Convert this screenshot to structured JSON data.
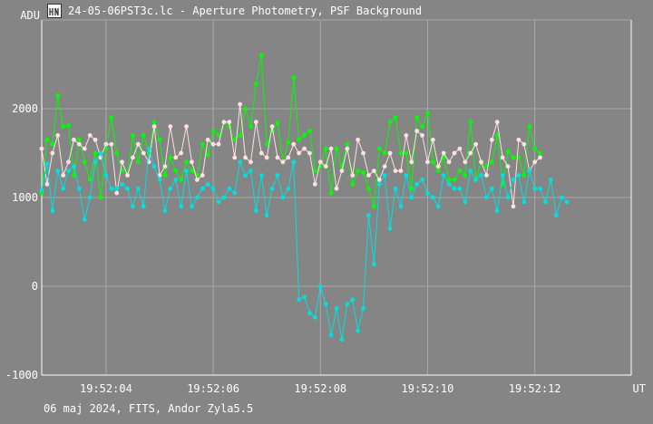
{
  "window": {
    "title": "24-05-06PST3c.lc - Aperture Photometry, PSF Background",
    "footer": "06 maj 2024, FITS, Andor Zyla5.5",
    "icon": "light-curve-app-icon"
  },
  "chart_data": {
    "type": "line",
    "title": "24-05-06PST3c.lc - Aperture Photometry, PSF Background",
    "ylabel": "ADU",
    "xlabel": "UT",
    "ylim": [
      -1000,
      3000
    ],
    "xlim": [
      "19:52:02.8",
      "19:52:13.8"
    ],
    "yticks": [
      2000,
      1000,
      0,
      -1000
    ],
    "xticks": [
      "19:52:04",
      "19:52:06",
      "19:52:08",
      "19:52:10",
      "19:52:12"
    ],
    "grid": true,
    "colors": {
      "background": "#858585",
      "grid": "#a8a8a8",
      "axis": "#ffffff"
    },
    "x_start": "19:52:02.8",
    "x_step_s": 0.1,
    "series": [
      {
        "color": "#00ff00",
        "values": [
          1050,
          1650,
          1600,
          2150,
          1800,
          1810,
          1250,
          1650,
          1400,
          1200,
          1500,
          1000,
          1550,
          1900,
          1500,
          1300,
          1250,
          1700,
          1400,
          1700,
          1500,
          1850,
          1650,
          1250,
          1450,
          1300,
          1200,
          1400,
          1300,
          1250,
          1600,
          1480,
          1750,
          1700,
          1850,
          1800,
          1650,
          1700,
          2000,
          1800,
          2280,
          2600,
          1600,
          1750,
          1840,
          1400,
          1620,
          2350,
          1650,
          1700,
          1750,
          1300,
          1350,
          1550,
          1050,
          1550,
          1350,
          1600,
          1150,
          1300,
          1280,
          1100,
          900,
          1550,
          1500,
          1850,
          1900,
          1500,
          1500,
          1100,
          1900,
          1800,
          1950,
          1400,
          1300,
          1450,
          1200,
          1200,
          1300,
          1250,
          1850,
          1200,
          1400,
          1350,
          1400,
          1700,
          1150,
          1520,
          1450,
          1450,
          1250,
          1800,
          1550,
          1500
        ]
      },
      {
        "color": "#ffe0e0",
        "values": [
          1550,
          1150,
          1500,
          1700,
          1250,
          1400,
          1650,
          1600,
          1550,
          1700,
          1650,
          1450,
          1600,
          1600,
          1050,
          1400,
          1250,
          1450,
          1600,
          1500,
          1400,
          1800,
          1250,
          1350,
          1800,
          1450,
          1500,
          1800,
          1400,
          1200,
          1250,
          1650,
          1600,
          1600,
          1850,
          1850,
          1450,
          2050,
          1450,
          1400,
          1850,
          1500,
          1450,
          1800,
          1450,
          1400,
          1450,
          1600,
          1500,
          1550,
          1500,
          1150,
          1400,
          1350,
          1550,
          1100,
          1300,
          1550,
          1250,
          1650,
          1500,
          1250,
          1300,
          1200,
          1350,
          1500,
          1300,
          1300,
          1700,
          1400,
          1750,
          1700,
          1400,
          1650,
          1350,
          1500,
          1400,
          1500,
          1550,
          1400,
          1500,
          1600,
          1400,
          1250,
          1650,
          1850,
          1450,
          1350,
          900,
          1650,
          1600,
          1300,
          1400,
          1450
        ]
      },
      {
        "color": "#00e0e0",
        "values": [
          1080,
          1380,
          850,
          1300,
          1100,
          1300,
          1350,
          1100,
          750,
          1000,
          1400,
          1500,
          1250,
          1100,
          1100,
          1150,
          1100,
          900,
          1100,
          900,
          1550,
          1350,
          1200,
          850,
          1100,
          1200,
          900,
          1300,
          900,
          1000,
          1100,
          1150,
          1100,
          950,
          1000,
          1100,
          1050,
          1400,
          1250,
          1300,
          850,
          1250,
          800,
          1100,
          1250,
          1000,
          1100,
          1400,
          -150,
          -120,
          -300,
          -350,
          0,
          -200,
          -550,
          -250,
          -600,
          -200,
          -150,
          -500,
          -250,
          800,
          250,
          1150,
          1250,
          650,
          1100,
          900,
          1250,
          1000,
          1150,
          1200,
          1050,
          1000,
          900,
          1250,
          1150,
          1100,
          1100,
          950,
          1300,
          1200,
          1250,
          1000,
          1100,
          850,
          1250,
          1000,
          1200,
          1250,
          950,
          1300,
          1100,
          1100,
          950,
          1200,
          800,
          1000,
          950
        ]
      }
    ]
  }
}
